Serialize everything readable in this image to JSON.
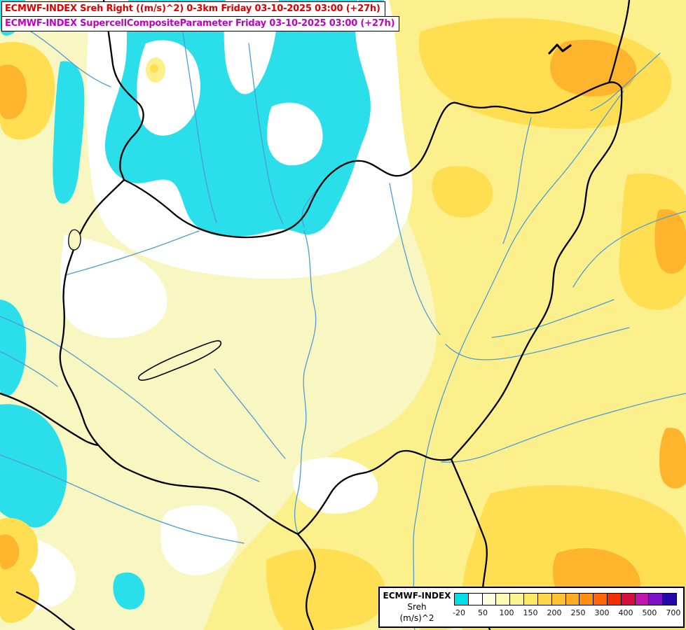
{
  "title_box": {
    "line1": "ECMWF-INDEX Sreh Right ((m/s)^2) 0-3km Friday 03-10-2025 03:00 (+27h)",
    "line2": "ECMWF-INDEX SupercellCompositeParameter Friday 03-10-2025 03:00 (+27h)",
    "line1_color": "#dd0000",
    "line2_color": "#c000c4"
  },
  "legend": {
    "line1": "ECMWF-INDEX",
    "line2": "Sreh",
    "line3": "(m/s)^2",
    "ticks": [
      "-20",
      "50",
      "100",
      "150",
      "200",
      "250",
      "300",
      "400",
      "500",
      "700"
    ],
    "bar_colors": [
      "#00dfe8",
      "#ffffff",
      "#fefede",
      "#fdfab8",
      "#fcf48e",
      "#ffe964",
      "#ffd748",
      "#ffc232",
      "#ffab20",
      "#ff8f12",
      "#ff6408",
      "#f32e04",
      "#d80d3e",
      "#c214aa",
      "#7a10c6",
      "#2408ae"
    ]
  },
  "map": {
    "palette": {
      "base": "#f8f7c2",
      "white": "#ffffff",
      "yellow": "#fbf08c",
      "gold": "#ffde52",
      "orange": "#ffb42d",
      "cyan": "#2bdfea",
      "river": "#4e9cd6",
      "border": "#000000",
      "lake_fill": "#f8f7c2"
    }
  }
}
